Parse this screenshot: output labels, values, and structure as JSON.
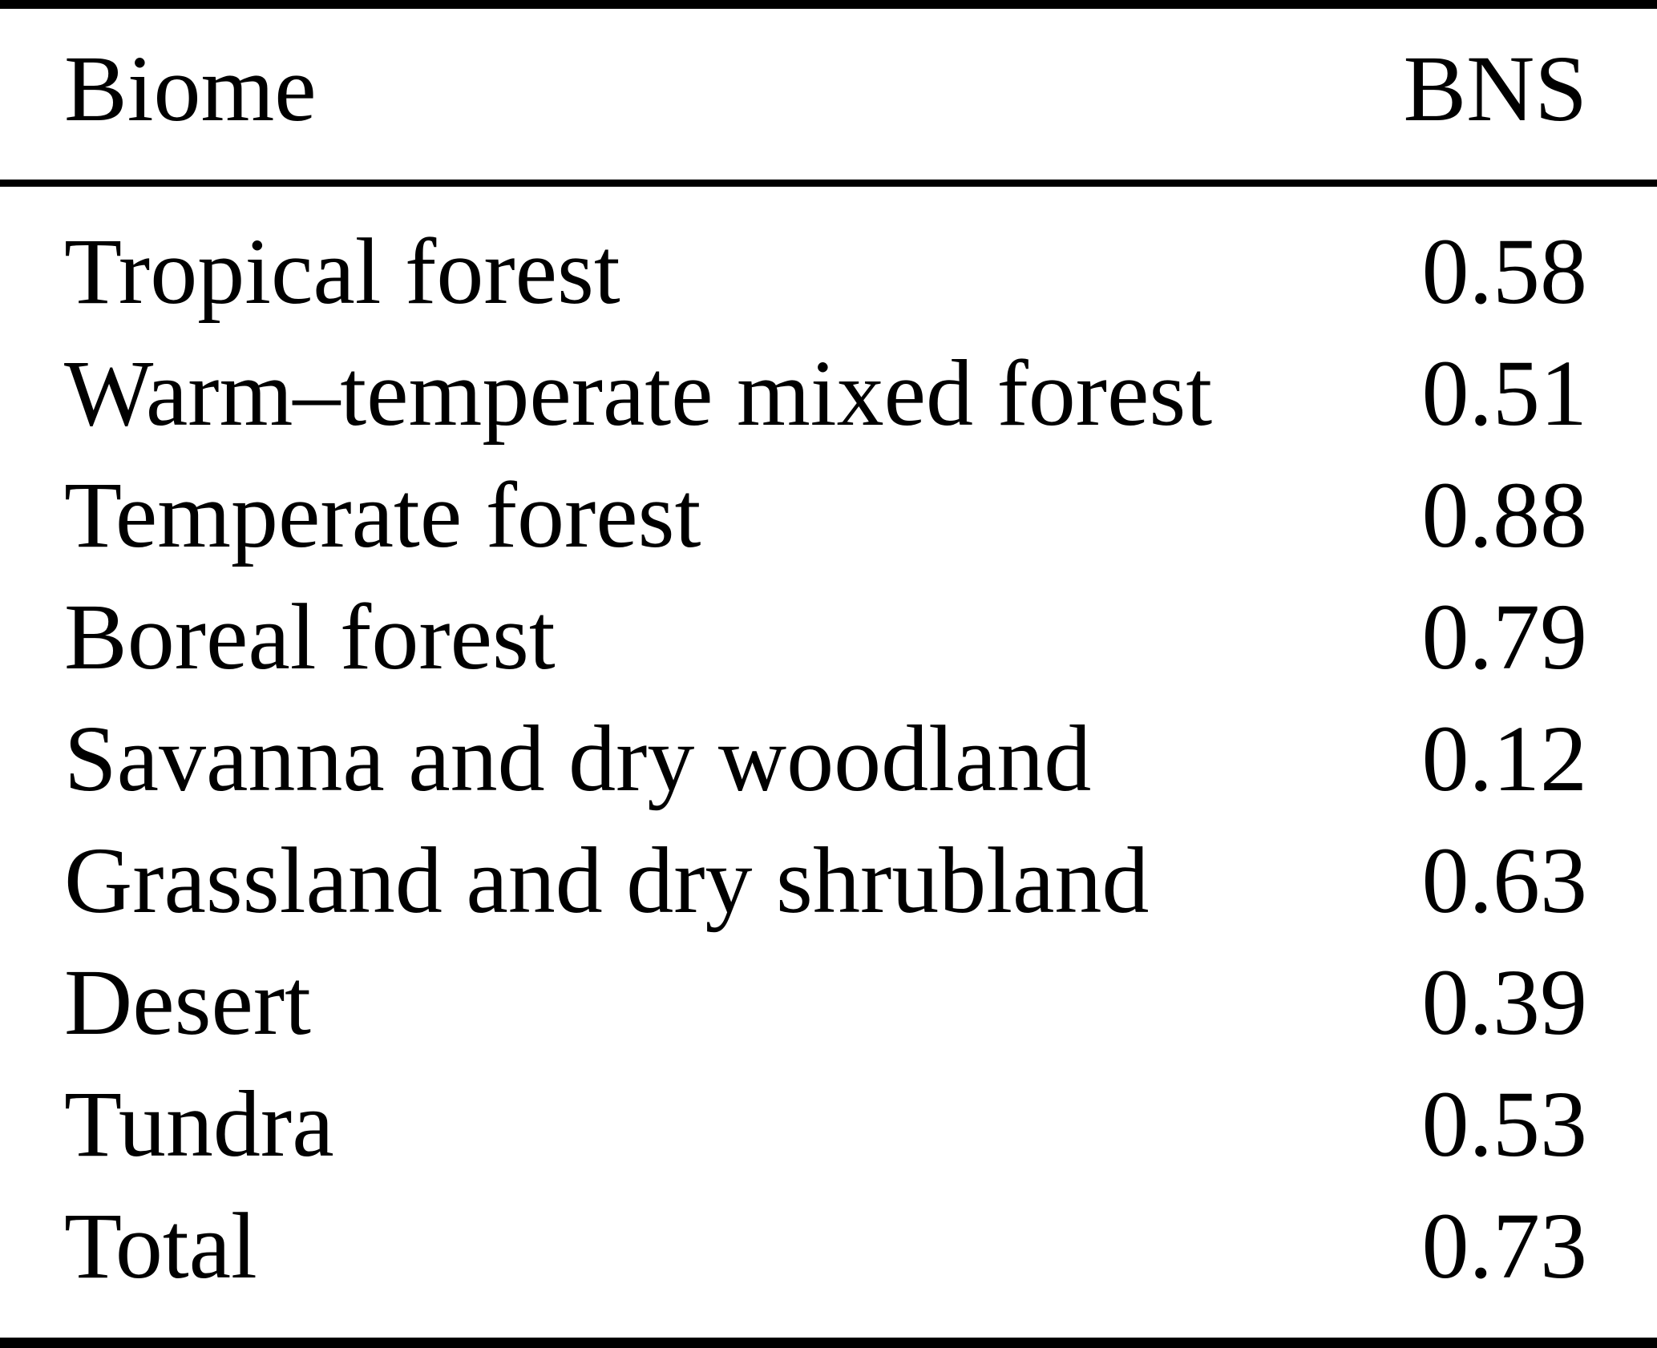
{
  "table": {
    "header": {
      "biome": "Biome",
      "bns": "BNS"
    },
    "rows": [
      {
        "biome": "Tropical forest",
        "bns": "0.58"
      },
      {
        "biome": "Warm–temperate mixed forest",
        "bns": "0.51"
      },
      {
        "biome": "Temperate forest",
        "bns": "0.88"
      },
      {
        "biome": "Boreal forest",
        "bns": "0.79"
      },
      {
        "biome": "Savanna and dry woodland",
        "bns": "0.12"
      },
      {
        "biome": "Grassland and dry shrubland",
        "bns": "0.63"
      },
      {
        "biome": "Desert",
        "bns": "0.39"
      },
      {
        "biome": "Tundra",
        "bns": "0.53"
      },
      {
        "biome": "Total",
        "bns": "0.73"
      }
    ],
    "colors": {
      "text": "#000000",
      "background": "#ffffff",
      "rule": "#000000"
    }
  },
  "chart_data": {
    "type": "table",
    "title": "",
    "columns": [
      "Biome",
      "BNS"
    ],
    "categories": [
      "Tropical forest",
      "Warm–temperate mixed forest",
      "Temperate forest",
      "Boreal forest",
      "Savanna and dry woodland",
      "Grassland and dry shrubland",
      "Desert",
      "Tundra",
      "Total"
    ],
    "values": [
      0.58,
      0.51,
      0.88,
      0.79,
      0.12,
      0.63,
      0.39,
      0.53,
      0.73
    ]
  }
}
